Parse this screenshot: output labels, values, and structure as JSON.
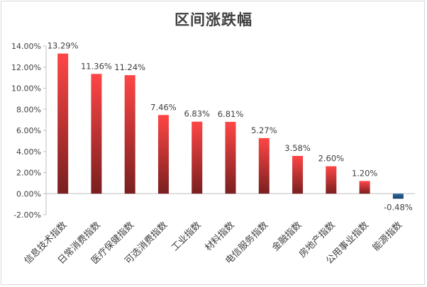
{
  "chart_data": {
    "type": "bar",
    "title": "区间涨跌幅",
    "categories": [
      "信息技术指数",
      "日常消费指数",
      "医疗保健指数",
      "可选消费指数",
      "工业指数",
      "材料指数",
      "电信服务指数",
      "金融指数",
      "房地产指数",
      "公用事业指数",
      "能源指数"
    ],
    "values": [
      13.29,
      11.36,
      11.24,
      7.46,
      6.83,
      6.81,
      5.27,
      3.58,
      2.6,
      1.2,
      -0.48
    ],
    "value_labels": [
      "13.29%",
      "11.36%",
      "11.24%",
      "7.46%",
      "6.83%",
      "6.81%",
      "5.27%",
      "3.58%",
      "2.60%",
      "1.20%",
      "-0.48%"
    ],
    "yticks": [
      -2,
      0,
      2,
      4,
      6,
      8,
      10,
      12,
      14
    ],
    "ytick_labels": [
      "-2.00%",
      "0.00%",
      "2.00%",
      "4.00%",
      "6.00%",
      "8.00%",
      "10.00%",
      "12.00%",
      "14.00%"
    ],
    "ylim": [
      -2,
      14
    ],
    "grid": false,
    "xlabel": "",
    "ylabel": "",
    "colors": {
      "positive_top": "#ff4646",
      "positive_bottom": "#7a1f1f",
      "negative_top": "#2e6da4",
      "negative_bottom": "#1a3f66",
      "axis": "#bfbfbf",
      "text": "#404040"
    }
  }
}
